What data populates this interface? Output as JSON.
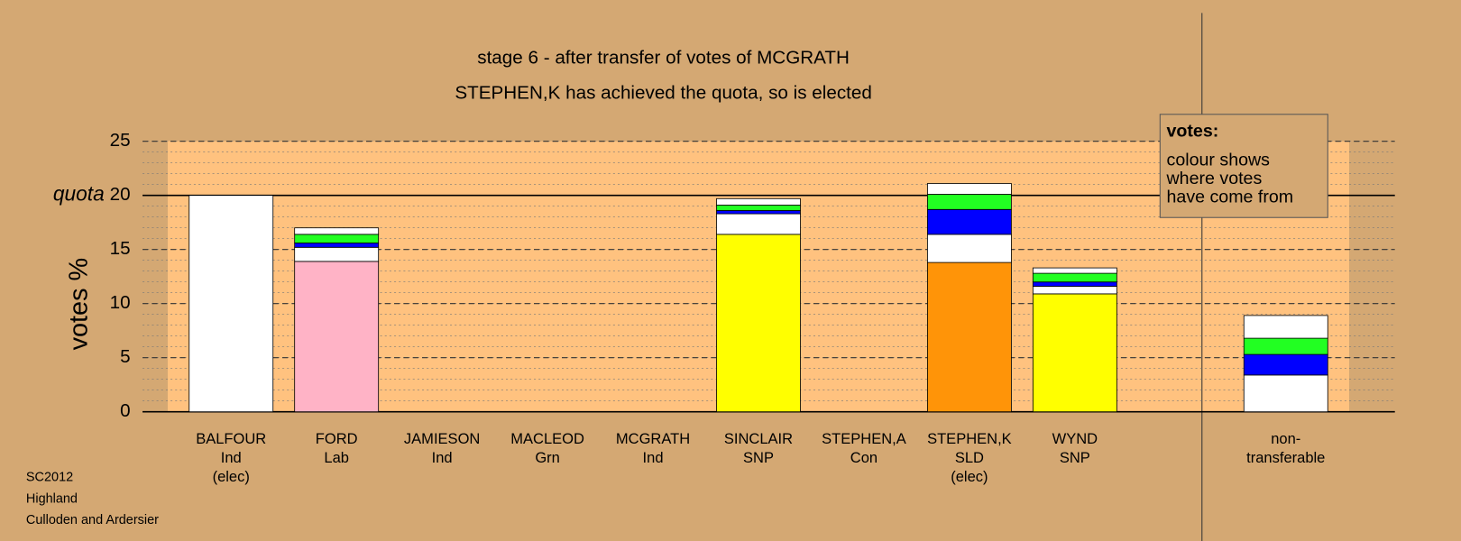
{
  "chart_data": {
    "type": "stacked-bar",
    "title": "stage 6 - after transfer of votes of MCGRATH",
    "subtitle": "STEPHEN,K has achieved the quota, so is elected",
    "ylabel": "votes %",
    "categories": [
      [
        "BALFOUR",
        "Ind",
        "(elec)"
      ],
      [
        "FORD",
        "Lab"
      ],
      [
        "JAMIESON",
        "Ind"
      ],
      [
        "MACLEOD",
        "Grn"
      ],
      [
        "MCGRATH",
        "Ind"
      ],
      [
        "SINCLAIR",
        "SNP"
      ],
      [
        "STEPHEN,A",
        "Con"
      ],
      [
        "STEPHEN,K",
        "SLD",
        "(elec)"
      ],
      [
        "WYND",
        "SNP"
      ],
      [
        "non-",
        "transferable"
      ]
    ],
    "series": [
      {
        "colors": [
          "#ffffff",
          "#ffb3c6",
          "#ffffff",
          "#ffffff",
          "#ffffff",
          "#ffff00",
          "#ffffff",
          "#ff9408",
          "#ffff00",
          "#ffffff"
        ],
        "values": [
          20,
          13.9,
          0,
          0,
          0,
          16.4,
          0,
          13.8,
          10.9,
          0
        ]
      },
      {
        "color": "#ffffff",
        "values": [
          0,
          1.3,
          0,
          0,
          0,
          1.9,
          0,
          2.6,
          0.7,
          3.4
        ]
      },
      {
        "color": "#0000ff",
        "values": [
          0,
          0.4,
          0,
          0,
          0,
          0.3,
          0,
          2.3,
          0.4,
          1.9
        ]
      },
      {
        "color": "#22ff22",
        "values": [
          0,
          0.8,
          0,
          0,
          0,
          0.5,
          0,
          1.4,
          0.8,
          1.5
        ]
      },
      {
        "color": "#ffffff",
        "values": [
          0,
          0.6,
          0,
          0,
          0,
          0.6,
          0,
          1.0,
          0.5,
          2.1
        ]
      }
    ],
    "ylim": [
      0,
      25
    ],
    "yticks": [
      0,
      5,
      10,
      15,
      20,
      25
    ],
    "minor_grid_step": 1,
    "quota": 20,
    "quota_label": "quota",
    "info_box": {
      "title": "votes:",
      "lines": [
        "colour shows",
        "where votes",
        "have come from"
      ]
    },
    "footer": [
      "SC2012",
      "Highland",
      "Culloden and Ardersier"
    ]
  }
}
